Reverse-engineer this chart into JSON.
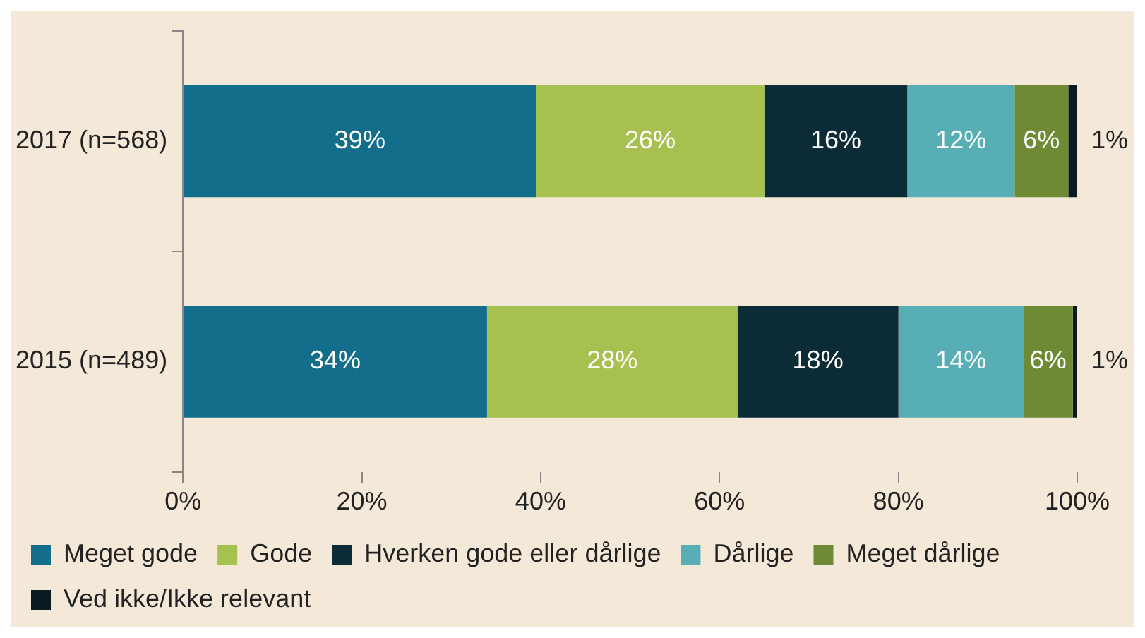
{
  "chart_data": {
    "type": "bar",
    "orientation": "horizontal",
    "stacked": true,
    "categories": [
      "2017 (n=568)",
      "2015 (n=489)"
    ],
    "series": [
      {
        "name": "Meget gode",
        "color": "#126e8a",
        "values": [
          39.5,
          34
        ],
        "value_labels": [
          "39%",
          "34%"
        ]
      },
      {
        "name": "Gode",
        "color": "#a6c150",
        "values": [
          25.5,
          28
        ],
        "value_labels": [
          "26%",
          "28%"
        ]
      },
      {
        "name": "Hverken gode eller dårlige",
        "color": "#0b2b36",
        "values": [
          16,
          18
        ],
        "value_labels": [
          "16%",
          "18%"
        ]
      },
      {
        "name": "Dårlige",
        "color": "#57aeb5",
        "values": [
          12,
          14
        ],
        "value_labels": [
          "12%",
          "14%"
        ]
      },
      {
        "name": "Meget dårlige",
        "color": "#6e8a35",
        "values": [
          6,
          5.5
        ],
        "value_labels": [
          "6%",
          "6%"
        ]
      },
      {
        "name": "Ved ikke/Ikke relevant",
        "color": "#0a1a20",
        "values": [
          1,
          0.5
        ],
        "value_labels": [
          "1%",
          "1%"
        ]
      }
    ],
    "xlim": [
      0,
      100
    ],
    "xticks": [
      {
        "value": 0,
        "label": "0%"
      },
      {
        "value": 20,
        "label": "20%"
      },
      {
        "value": 40,
        "label": "40%"
      },
      {
        "value": 60,
        "label": "60%"
      },
      {
        "value": 80,
        "label": "80%"
      },
      {
        "value": 100,
        "label": "100%"
      }
    ],
    "grid": false,
    "legend": "bottom"
  }
}
